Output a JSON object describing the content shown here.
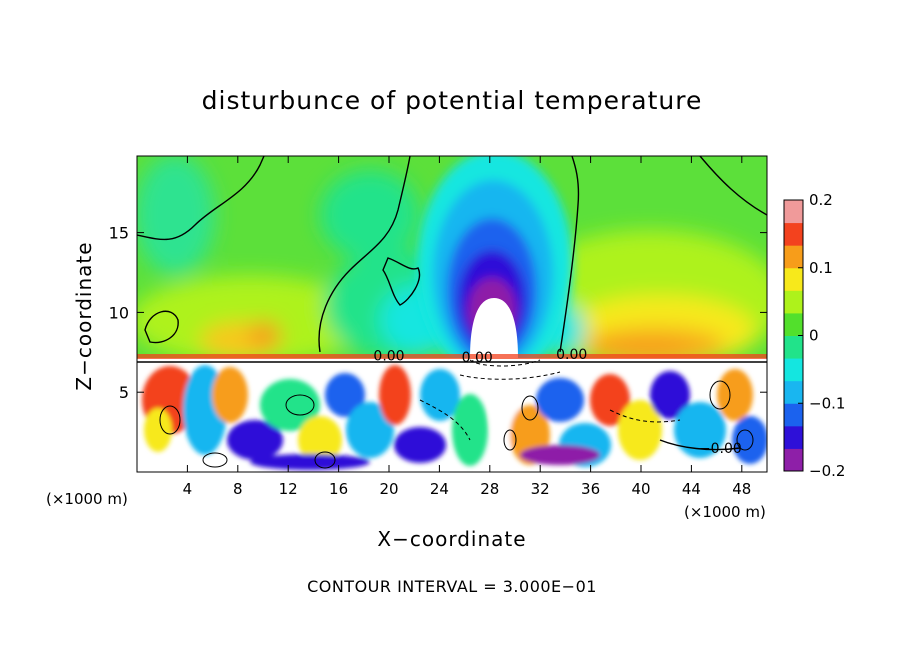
{
  "chart_data": {
    "type": "heatmap",
    "title": "disturbunce of potential temperature",
    "xlabel": "X−coordinate",
    "ylabel": "Z−coordinate",
    "x_unit_label": "(×1000 m)",
    "x_ticks": [
      4,
      8,
      12,
      16,
      20,
      24,
      28,
      32,
      36,
      40,
      44,
      48
    ],
    "y_ticks": [
      5,
      10,
      15
    ],
    "xlim": [
      0,
      50
    ],
    "ylim": [
      0,
      19.8
    ],
    "colorbar": {
      "ticks": [
        "0.2",
        "0.1",
        "0",
        "−0.1",
        "−0.2"
      ],
      "range": [
        -0.2,
        0.2
      ]
    },
    "contour_labels": [
      {
        "text": "0.00",
        "x": 20,
        "y": 7.3
      },
      {
        "text": "0.00",
        "x": 27,
        "y": 7.2
      },
      {
        "text": "0.00",
        "x": 34.5,
        "y": 7.4
      },
      {
        "text": "−0.00",
        "x": 46.3,
        "y": 1.5
      }
    ],
    "contour_interval_text": "CONTOUR INTERVAL = 3.000E−01",
    "colors": {
      "scale": [
        "#8e1fa8",
        "#2e10d8",
        "#1b62ee",
        "#19b6f0",
        "#14e6e0",
        "#21e38a",
        "#52e02c",
        "#aef21b",
        "#f7e91b",
        "#f79d1a",
        "#f3421e",
        "#f09a9a"
      ]
    }
  }
}
